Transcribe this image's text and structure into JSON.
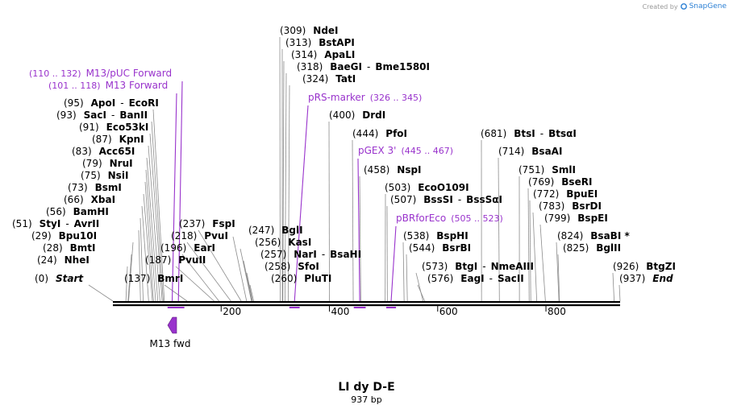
{
  "credit": {
    "prefix": "Created by",
    "brand": "SnapGene"
  },
  "plasmid": {
    "name": "LI dy D-E",
    "length_label": "937 bp",
    "length": 937
  },
  "colors": {
    "feature": "#9933cc",
    "backbone": "#000000",
    "leader": "#8c8c8c"
  },
  "axis_ticks": [
    "200",
    "400",
    "600",
    "800"
  ],
  "primer_label": "M13 fwd",
  "sites": [
    {
      "pos": "(0)",
      "name": "Start",
      "italic": true
    },
    {
      "pos": "(24)",
      "name": "NheI"
    },
    {
      "pos": "(28)",
      "name": "BmtI"
    },
    {
      "pos": "(29)",
      "name": "Bpu10I"
    },
    {
      "pos": "(51)",
      "name": "StyI",
      "name2": "AvrII"
    },
    {
      "pos": "(56)",
      "name": "BamHI"
    },
    {
      "pos": "(66)",
      "name": "XbaI"
    },
    {
      "pos": "(73)",
      "name": "BsmI"
    },
    {
      "pos": "(75)",
      "name": "NsiI"
    },
    {
      "pos": "(79)",
      "name": "NruI"
    },
    {
      "pos": "(83)",
      "name": "Acc65I"
    },
    {
      "pos": "(87)",
      "name": "KpnI"
    },
    {
      "pos": "(91)",
      "name": "Eco53kI"
    },
    {
      "pos": "(93)",
      "name": "SacI",
      "name2": "BanII"
    },
    {
      "pos": "(95)",
      "name": "ApoI",
      "name2": "EcoRI"
    },
    {
      "pos": "(137)",
      "name": "BmrI"
    },
    {
      "pos": "(187)",
      "name": "PvuII"
    },
    {
      "pos": "(196)",
      "name": "EarI"
    },
    {
      "pos": "(218)",
      "name": "PvuI"
    },
    {
      "pos": "(237)",
      "name": "FspI"
    },
    {
      "pos": "(247)",
      "name": "BglI"
    },
    {
      "pos": "(256)",
      "name": "KasI"
    },
    {
      "pos": "(257)",
      "name": "NarI",
      "name2": "BsaHI"
    },
    {
      "pos": "(258)",
      "name": "SfoI"
    },
    {
      "pos": "(260)",
      "name": "PluTI"
    },
    {
      "pos": "(309)",
      "name": "NdeI"
    },
    {
      "pos": "(313)",
      "name": "BstAPI"
    },
    {
      "pos": "(314)",
      "name": "ApaLI"
    },
    {
      "pos": "(318)",
      "name": "BaeGI",
      "name2": "Bme1580I"
    },
    {
      "pos": "(324)",
      "name": "TatI"
    },
    {
      "pos": "(400)",
      "name": "DrdI"
    },
    {
      "pos": "(444)",
      "name": "PfoI"
    },
    {
      "pos": "(458)",
      "name": "NspI"
    },
    {
      "pos": "(503)",
      "name": "EcoO109I"
    },
    {
      "pos": "(507)",
      "name": "BssSI",
      "name2": "BssSαI"
    },
    {
      "pos": "(538)",
      "name": "BspHI"
    },
    {
      "pos": "(544)",
      "name": "BsrBI"
    },
    {
      "pos": "(573)",
      "name": "BtgI",
      "name2": "NmeAIII"
    },
    {
      "pos": "(576)",
      "name": "EagI",
      "name2": "SacII"
    },
    {
      "pos": "(681)",
      "name": "BtsI",
      "name2": "BtsαI"
    },
    {
      "pos": "(714)",
      "name": "BsaAI"
    },
    {
      "pos": "(751)",
      "name": "SmlI"
    },
    {
      "pos": "(769)",
      "name": "BseRI"
    },
    {
      "pos": "(772)",
      "name": "BpuEI"
    },
    {
      "pos": "(783)",
      "name": "BsrDI"
    },
    {
      "pos": "(799)",
      "name": "BspEI"
    },
    {
      "pos": "(824)",
      "name": "BsaBI *"
    },
    {
      "pos": "(825)",
      "name": "BglII"
    },
    {
      "pos": "(926)",
      "name": "BtgZI"
    },
    {
      "pos": "(937)",
      "name": "End",
      "italic": true
    }
  ],
  "features": [
    {
      "name": "M13/pUC Forward",
      "range": "(110 .. 132)"
    },
    {
      "name": "M13 Forward",
      "range": "(101 .. 118)"
    },
    {
      "name": "pRS-marker",
      "range": "(326 .. 345)"
    },
    {
      "name": "pGEX 3'",
      "range": "(445 .. 467)"
    },
    {
      "name": "pBRforEco",
      "range": "(505 .. 523)"
    }
  ]
}
